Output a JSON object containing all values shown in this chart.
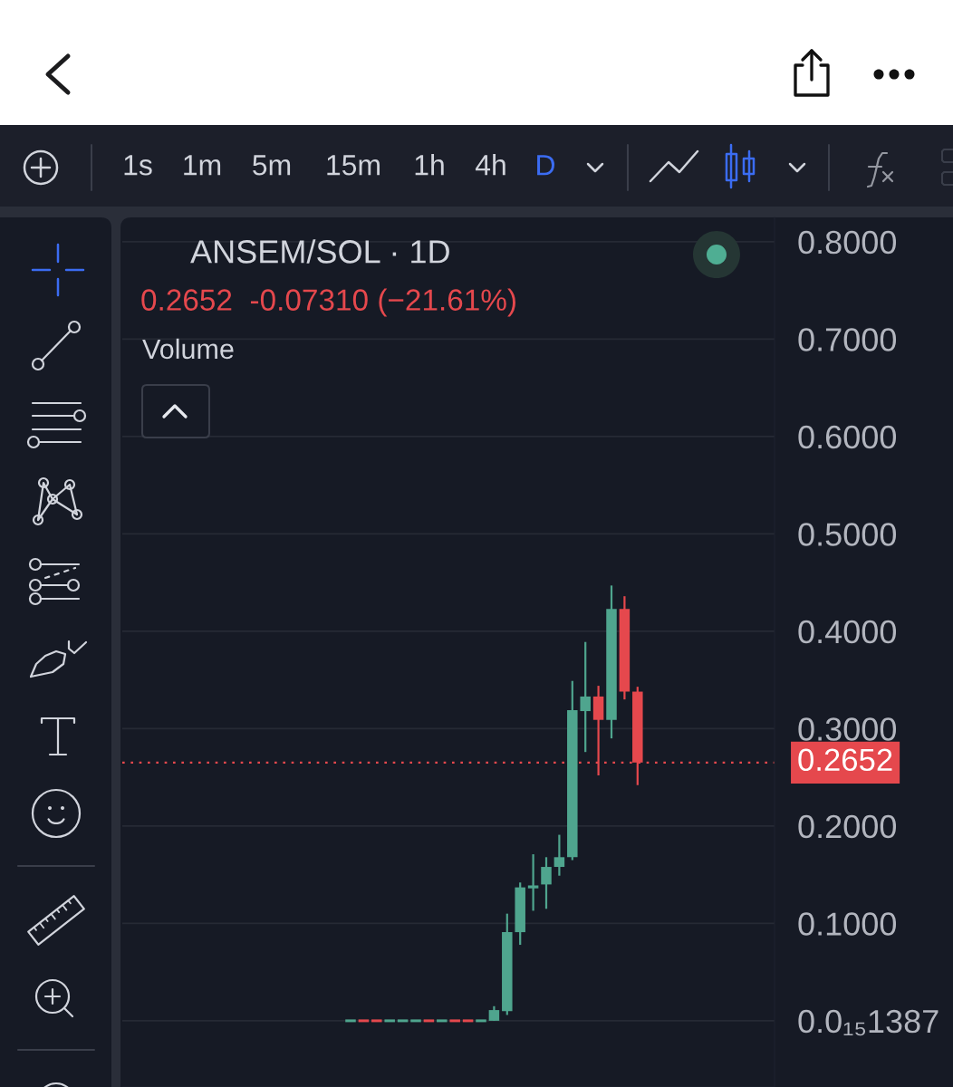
{
  "chart_data": {
    "type": "candlestick",
    "title": "ANSEM/SOL · 1D",
    "subtitle": "0.2652  -0.07310 (−21.61%)",
    "annotations": [
      "1s",
      "1m",
      "5m",
      "15m",
      "1h",
      "4h",
      "D",
      "Volume"
    ],
    "categories": [
      null,
      null,
      null,
      null,
      null,
      null,
      null,
      null,
      null,
      null,
      null,
      null,
      null,
      null,
      null,
      null,
      null,
      null,
      null,
      null,
      null,
      null,
      null,
      null,
      null,
      null,
      null,
      null,
      null,
      null,
      null,
      null,
      null,
      null,
      null,
      null,
      null,
      null,
      null,
      null,
      null,
      null,
      null,
      null,
      null,
      null,
      null,
      null,
      null,
      null
    ],
    "ohlc": [
      null,
      null,
      null,
      null,
      null,
      null,
      null,
      null,
      null,
      null,
      null,
      null,
      null,
      null,
      null,
      null,
      null,
      [
        0,
        0,
        0,
        0
      ],
      [
        0,
        0,
        0,
        0
      ],
      [
        0,
        0,
        0,
        0
      ],
      [
        0,
        0,
        0,
        0
      ],
      [
        0,
        0,
        0,
        0
      ],
      [
        0,
        0,
        0,
        0
      ],
      [
        0,
        0,
        0,
        0
      ],
      [
        0,
        0,
        0,
        0
      ],
      [
        0,
        0,
        0,
        0
      ],
      [
        0,
        0,
        0,
        0
      ],
      [
        0,
        0,
        0,
        0
      ],
      [
        0,
        0.015,
        0,
        0.011
      ],
      [
        0.01,
        0.11,
        0.006,
        0.091
      ],
      [
        0.091,
        0.142,
        0.078,
        0.137
      ],
      [
        0.136,
        0.171,
        0.113,
        0.139
      ],
      [
        0.14,
        0.168,
        0.115,
        0.158
      ],
      [
        0.158,
        0.191,
        0.149,
        0.168
      ],
      [
        0.168,
        0.349,
        0.165,
        0.319
      ],
      [
        0.318,
        0.389,
        0.276,
        0.333
      ],
      [
        0.333,
        0.344,
        0.252,
        0.309
      ],
      [
        0.309,
        0.447,
        0.29,
        0.423
      ],
      [
        0.423,
        0.436,
        0.33,
        0.338
      ],
      [
        0.338,
        0.343,
        0.242,
        0.2652
      ],
      null,
      null,
      null,
      null,
      null,
      null,
      null,
      null,
      null,
      null
    ],
    "colors": [
      null,
      null,
      null,
      null,
      null,
      null,
      null,
      null,
      null,
      null,
      null,
      null,
      null,
      null,
      null,
      null,
      null,
      "#4fa58e",
      "#e5484d",
      "#e5484d",
      "#4fa58e",
      "#4fa58e",
      "#4fa58e",
      "#e5484d",
      "#4fa58e",
      "#e5484d",
      "#e5484d",
      "#4fa58e",
      "#4fa58e",
      "#4fa58e",
      "#4fa58e",
      "#4fa58e",
      "#4fa58e",
      "#4fa58e",
      "#4fa58e",
      "#4fa58e",
      "#e5484d",
      "#4fa58e",
      "#e5484d",
      "#e5484d",
      null,
      null,
      null,
      null,
      null,
      null,
      null,
      null,
      null,
      null
    ],
    "ylim": [
      -0.068,
      0.825
    ],
    "yticks": [
      {
        "value": 1.387e-16,
        "label": "0.0₁₅1387"
      },
      {
        "value": 0.1,
        "label": "0.1000"
      },
      {
        "value": 0.2,
        "label": "0.2000"
      },
      {
        "value": 0.3,
        "label": "0.3000"
      },
      {
        "value": 0.4,
        "label": "0.4000"
      },
      {
        "value": 0.5,
        "label": "0.5000"
      },
      {
        "value": 0.6,
        "label": "0.6000"
      },
      {
        "value": 0.7,
        "label": "0.7000"
      },
      {
        "value": 0.8,
        "label": "0.8000"
      }
    ],
    "ref_lines": [
      {
        "axis": "y",
        "value": 0.2652,
        "label": "0.2652",
        "color": "#e5484d",
        "line_style": "dotted"
      }
    ],
    "grid": "y",
    "tick_labels": "y"
  }
}
